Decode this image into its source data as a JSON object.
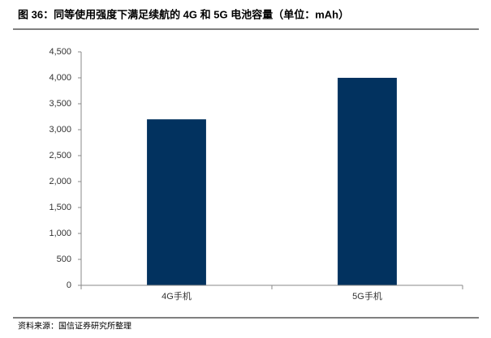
{
  "chart_data": {
    "type": "bar",
    "title": "图 36：同等使用强度下满足续航的 4G 和 5G 电池容量（单位：mAh）",
    "source": "资料来源：国信证券研究所整理",
    "categories": [
      "4G手机",
      "5G手机"
    ],
    "values": [
      3200,
      4000
    ],
    "color": "#02325f",
    "ylim": [
      0,
      4500
    ],
    "yticks": [
      0,
      500,
      {
        "value": 1000,
        "label": "1,000"
      },
      {
        "value": 1500,
        "label": "1,500"
      },
      {
        "value": 2000,
        "label": "2,000"
      },
      {
        "value": 2500,
        "label": "2,500"
      },
      {
        "value": 3000,
        "label": "3,000"
      },
      {
        "value": 3500,
        "label": "3,500"
      },
      {
        "value": 4000,
        "label": "4,000"
      },
      {
        "value": 4500,
        "label": "4,500"
      }
    ],
    "grid": false
  }
}
